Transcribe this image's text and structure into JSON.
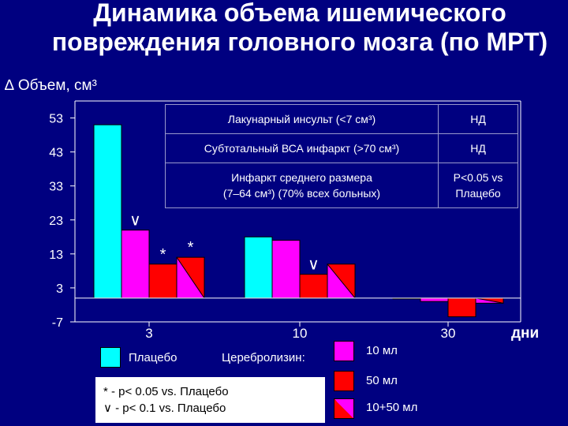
{
  "title": "Динамика объема ишемического повреждения головного мозга (по МРТ)",
  "y_axis_label": "∆ Объем, см³",
  "x_unit_label": "дни",
  "chart_data": {
    "type": "bar",
    "categories": [
      "3",
      "10",
      "30"
    ],
    "ylim": [
      -7,
      58
    ],
    "yticks": [
      53,
      43,
      33,
      23,
      13,
      3,
      -7
    ],
    "series": [
      {
        "name": "Плацебо",
        "color": "#00FFFF",
        "values": [
          51,
          18,
          0
        ]
      },
      {
        "name": "10 мл",
        "color": "#FF00FF",
        "values": [
          20,
          17,
          -1
        ]
      },
      {
        "name": "50 мл",
        "color": "#FF0000",
        "values": [
          10,
          7,
          -5.5
        ]
      },
      {
        "name": "10+50 мл",
        "color": "#FF0000/#FF00FF",
        "values": [
          12,
          10,
          -1.5
        ]
      }
    ],
    "annotations": [
      {
        "text": "∨",
        "category": "3",
        "series": "10 мл"
      },
      {
        "text": "*",
        "category": "3",
        "series": "50 мл"
      },
      {
        "text": "*",
        "category": "3",
        "series": "10+50 мл"
      },
      {
        "text": "∨",
        "category": "10",
        "series": "50 мл"
      }
    ]
  },
  "significance_table": {
    "rows": [
      {
        "condition": "Лакунарный инсульт (<7 см³)",
        "result": "НД"
      },
      {
        "condition": "Субтотальный ВСА инфаркт (>70 см³)",
        "result": "НД"
      },
      {
        "condition_line1": "Инфаркт среднего размера",
        "condition_line2": "(7–64 см³) (70% всех больных)",
        "result_line1": "P<0.05 vs",
        "result_line2": "Плацебо"
      }
    ]
  },
  "legend": {
    "placebo": "Плацебо",
    "cerebrolysin": "Церебролизин:",
    "dose_10": "10 мл",
    "dose_50": "50 мл",
    "dose_combo": "10+50 мл"
  },
  "footnotes": {
    "star": "* - p< 0.05  vs. Плацебо",
    "check": "∨ - p< 0.1   vs. Плацебо"
  }
}
